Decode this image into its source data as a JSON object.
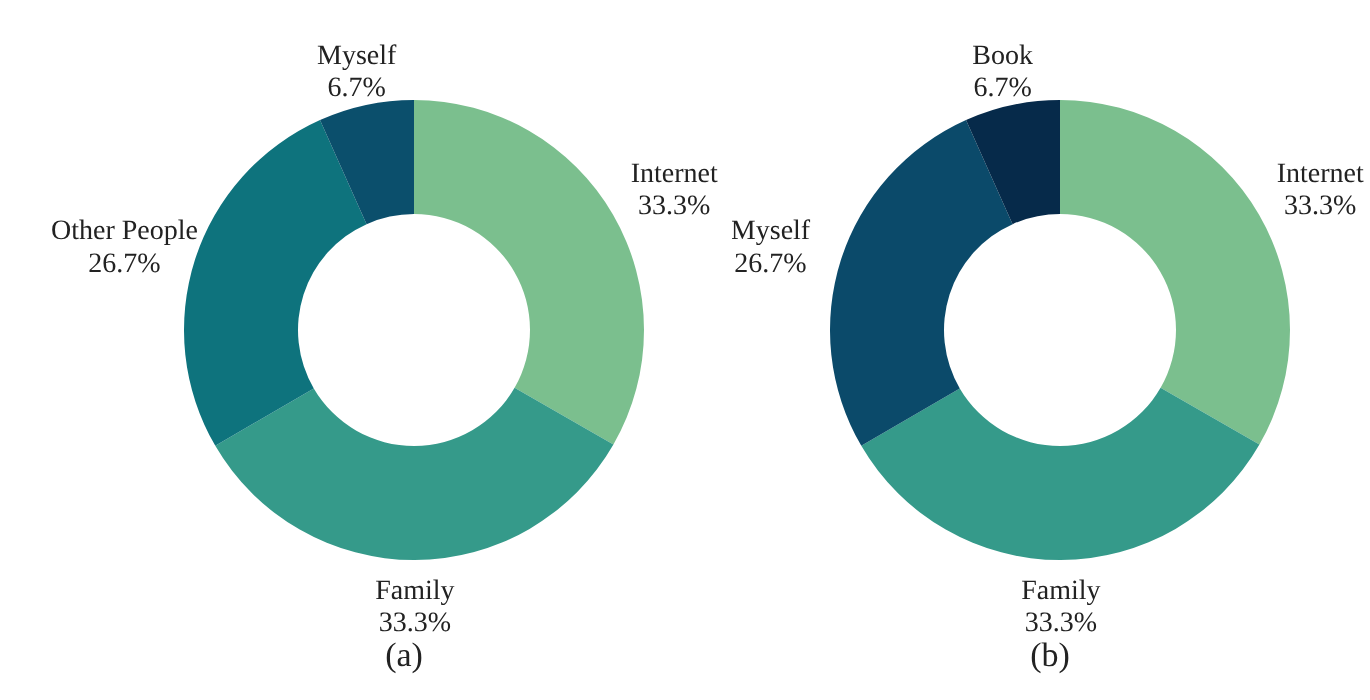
{
  "chart_data": [
    {
      "type": "donut",
      "annotations": [
        "(a)"
      ],
      "categories": [
        "Internet",
        "Family",
        "Other People",
        "Myself"
      ],
      "values": [
        33.3,
        33.3,
        26.7,
        6.7
      ],
      "value_labels": [
        "33.3%",
        "33.3%",
        "26.7%",
        "6.7%"
      ],
      "colors": [
        "#7bbf8e",
        "#359a8a",
        "#0e737d",
        "#0b4f6c"
      ],
      "legend": false
    },
    {
      "type": "donut",
      "annotations": [
        "(b)"
      ],
      "categories": [
        "Internet",
        "Family",
        "Myself",
        "Book"
      ],
      "values": [
        33.3,
        33.3,
        26.7,
        6.7
      ],
      "value_labels": [
        "33.3%",
        "33.3%",
        "26.7%",
        "6.7%"
      ],
      "colors": [
        "#7bbf8e",
        "#359a8a",
        "#0b4a6a",
        "#062a4a"
      ],
      "legend": false
    }
  ]
}
